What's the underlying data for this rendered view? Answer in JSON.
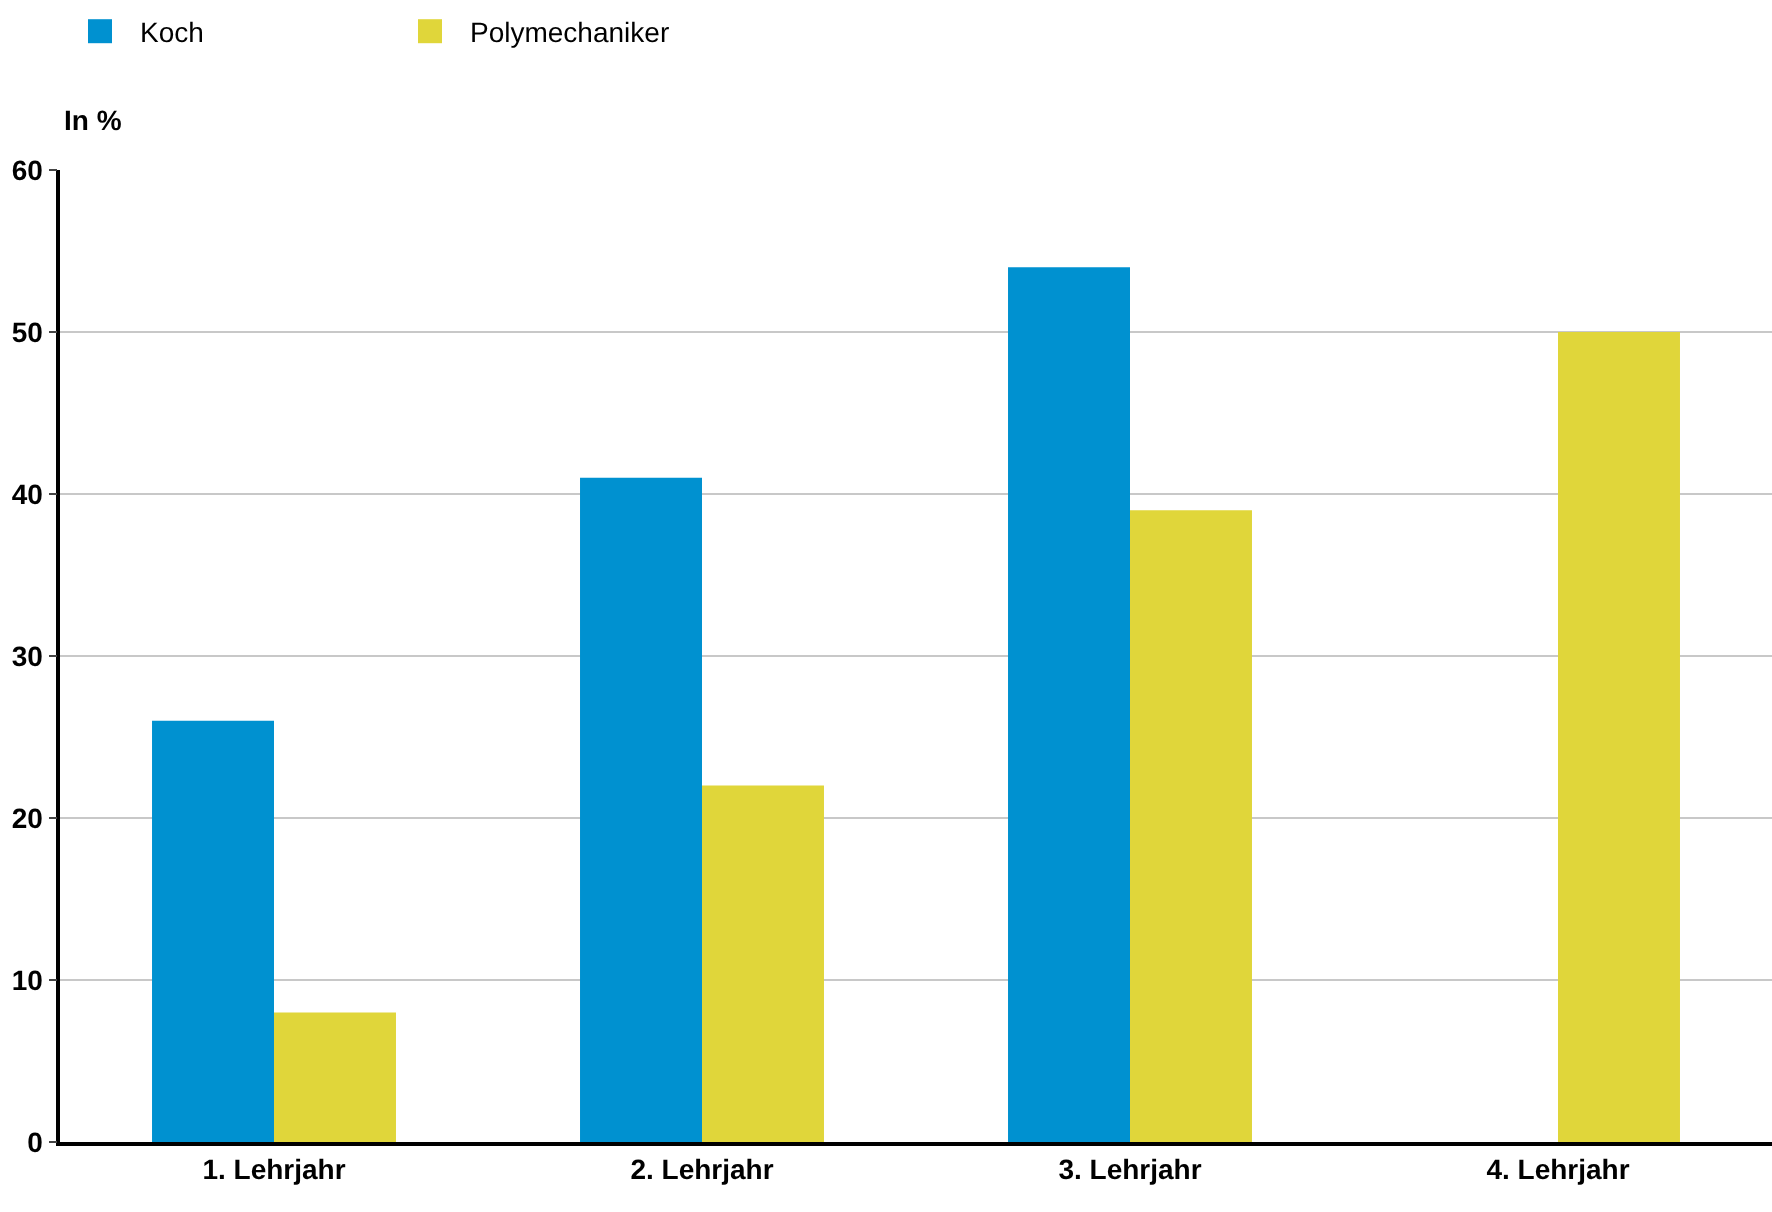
{
  "chart_data": {
    "type": "bar",
    "ylabel": "In %",
    "categories": [
      "1. Lehrjahr",
      "2. Lehrjahr",
      "3. Lehrjahr",
      "4. Lehrjahr"
    ],
    "series": [
      {
        "name": "Koch",
        "color": "#0091d0",
        "values": [
          26,
          41,
          54,
          null
        ]
      },
      {
        "name": "Polymechaniker",
        "color": "#e0d63a",
        "values": [
          8,
          22,
          39,
          50
        ]
      }
    ],
    "ylim": [
      0,
      60
    ],
    "yticks": [
      0,
      10,
      20,
      30,
      40,
      50,
      60
    ],
    "grid": "y",
    "legend": "top left"
  }
}
